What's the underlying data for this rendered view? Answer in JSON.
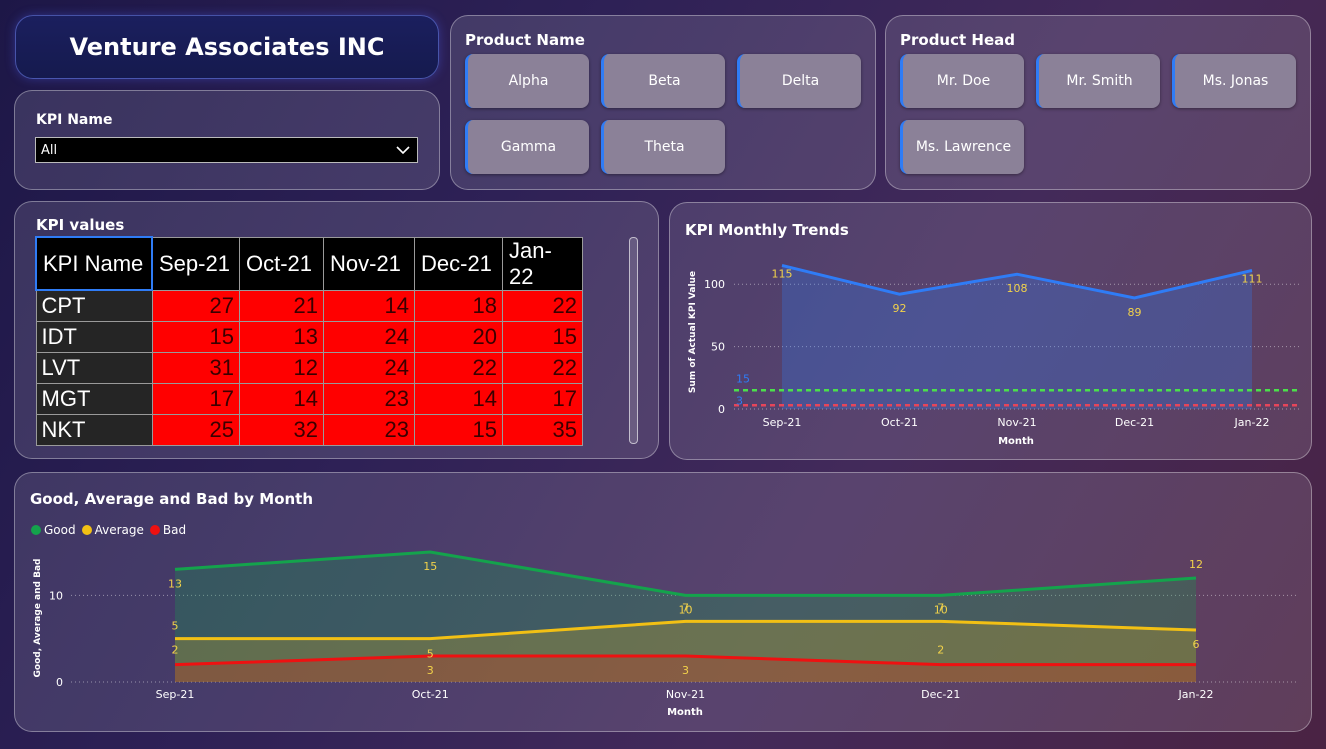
{
  "header": {
    "title": "Venture Associates INC"
  },
  "kpi_filter": {
    "label": "KPI Name",
    "selected": "All"
  },
  "product_name": {
    "title": "Product Name",
    "options": [
      "Alpha",
      "Beta",
      "Delta",
      "Gamma",
      "Theta"
    ]
  },
  "product_head": {
    "title": "Product Head",
    "options": [
      "Mr. Doe",
      "Mr. Smith",
      "Ms. Jonas",
      "Ms. Lawrence"
    ]
  },
  "kpi_table": {
    "title": "KPI values",
    "columns": [
      "KPI Name",
      "Sep-21",
      "Oct-21",
      "Nov-21",
      "Dec-21",
      "Jan-22"
    ],
    "rows": [
      {
        "name": "CPT",
        "values": [
          "27",
          "21",
          "14",
          "18",
          "22"
        ]
      },
      {
        "name": "IDT",
        "values": [
          "15",
          "13",
          "24",
          "20",
          "15"
        ]
      },
      {
        "name": "LVT",
        "values": [
          "31",
          "12",
          "24",
          "22",
          "22"
        ]
      },
      {
        "name": "MGT",
        "values": [
          "17",
          "14",
          "23",
          "14",
          "17"
        ]
      },
      {
        "name": "NKT",
        "values": [
          "25",
          "32",
          "23",
          "15",
          "35"
        ]
      }
    ]
  },
  "colors": {
    "blue": "#2f7cf6",
    "good": "#14a34c",
    "average": "#f2c014",
    "bad": "#ee1111",
    "target": "#4be04b",
    "threshold": "#e6455a"
  },
  "chart_data": [
    {
      "type": "area",
      "title": "KPI Monthly Trends",
      "xlabel": "Month",
      "ylabel": "Sum of Actual KPI Value",
      "categories": [
        "Sep-21",
        "Oct-21",
        "Nov-21",
        "Dec-21",
        "Jan-22"
      ],
      "y_ticks": [
        "0",
        "50",
        "100"
      ],
      "ylim": [
        0,
        125
      ],
      "series": [
        {
          "values": [
            115,
            92,
            108,
            89,
            111
          ],
          "color": "#2f7cf6"
        }
      ],
      "reference_lines": [
        {
          "value": 15,
          "label": "15",
          "color": "#4be04b"
        },
        {
          "value": 3,
          "label": "3",
          "color": "#e6455a"
        }
      ],
      "grid": "horizontal dotted"
    },
    {
      "type": "area",
      "title": "Good, Average and Bad by Month",
      "xlabel": "Month",
      "ylabel": "Good, Average and Bad",
      "categories": [
        "Sep-21",
        "Oct-21",
        "Nov-21",
        "Dec-21",
        "Jan-22"
      ],
      "y_ticks": [
        "0",
        "10"
      ],
      "ylim": [
        0,
        16.5
      ],
      "legend": "top-left",
      "series": [
        {
          "name": "Good",
          "values": [
            13,
            15,
            10,
            10,
            12
          ],
          "color": "#14a34c"
        },
        {
          "name": "Average",
          "values": [
            5,
            5,
            7,
            7,
            6
          ],
          "color": "#f2c014"
        },
        {
          "name": "Bad",
          "values": [
            2,
            3,
            3,
            2,
            2
          ],
          "color": "#ee1111"
        }
      ],
      "grid": "horizontal dotted"
    }
  ]
}
